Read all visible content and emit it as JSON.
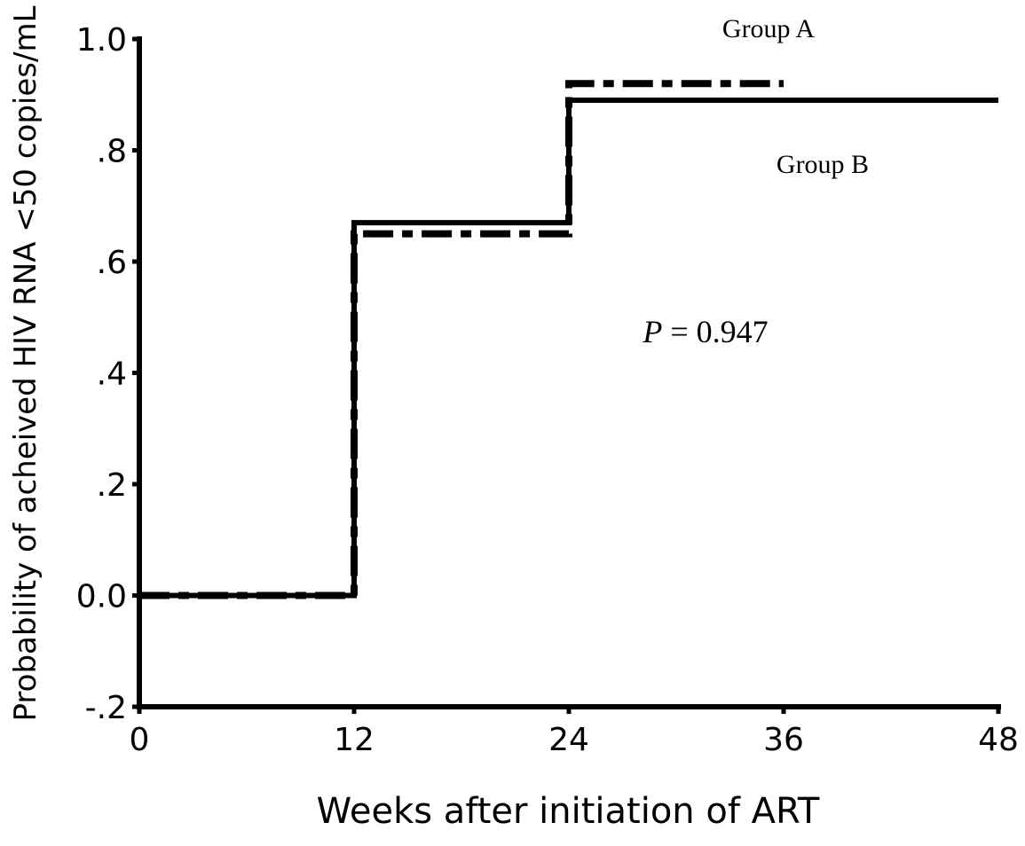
{
  "chart_data": {
    "type": "line",
    "title": "",
    "xlabel": "Weeks after initiation of ART",
    "ylabel": "Probability of acheived HIV RNA <50 copies/mL",
    "xlim": [
      0,
      48
    ],
    "ylim": [
      -0.2,
      1.0
    ],
    "x_ticks": [
      0,
      12,
      24,
      36,
      48
    ],
    "x_tick_labels": [
      "0",
      "12",
      "24",
      "36",
      "48"
    ],
    "y_ticks": [
      -0.2,
      0,
      0.2,
      0.4,
      0.6,
      0.8,
      1.0
    ],
    "y_tick_labels": [
      "-.2",
      "0.0",
      ".2",
      ".4",
      ".6",
      ".8",
      "1.0"
    ],
    "grid": false,
    "series": [
      {
        "name": "Group A",
        "line_style": "dash-dot",
        "color": "#000000",
        "points": [
          [
            0,
            0
          ],
          [
            12,
            0
          ],
          [
            12,
            0.65
          ],
          [
            24,
            0.65
          ],
          [
            24,
            0.92
          ],
          [
            36,
            0.92
          ]
        ]
      },
      {
        "name": "Group B",
        "line_style": "solid",
        "color": "#000000",
        "points": [
          [
            0,
            0
          ],
          [
            12,
            0
          ],
          [
            12,
            0.67
          ],
          [
            24,
            0.67
          ],
          [
            24,
            0.89
          ],
          [
            48,
            0.89
          ]
        ]
      }
    ],
    "annotations": [
      {
        "prefix": "P",
        "text": " = 0.947"
      }
    ]
  }
}
